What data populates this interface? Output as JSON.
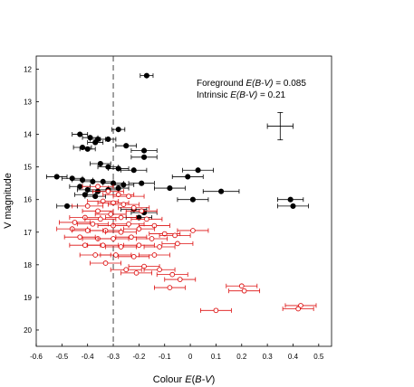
{
  "chart_data": {
    "type": "scatter",
    "title": "",
    "xlabel": "Colour E(B-V)",
    "ylabel": "V magnitude",
    "xlim": [
      -0.6,
      0.55
    ],
    "ylim": [
      11.6,
      20.5
    ],
    "y_inverted": true,
    "x_ticks": [
      "-0.6",
      "-0.5",
      "-0.4",
      "-0.3",
      "-0.2",
      "-0.1",
      "0",
      "0.1",
      "0.2",
      "0.3",
      "0.4",
      "0.5"
    ],
    "x_tick_values": [
      -0.6,
      -0.5,
      -0.4,
      -0.3,
      -0.2,
      -0.1,
      0,
      0.1,
      0.2,
      0.3,
      0.4,
      0.5
    ],
    "y_ticks": [
      "12",
      "13",
      "14",
      "15",
      "16",
      "17",
      "18",
      "19",
      "20"
    ],
    "y_tick_values": [
      12,
      13,
      14,
      15,
      16,
      17,
      18,
      19,
      20
    ],
    "grid": false,
    "annotations": {
      "foreground": {
        "prefix": "Foreground ",
        "label": "E(B-V)",
        "suffix": " = 0.085"
      },
      "intrinsic": {
        "prefix": "Intrinsic ",
        "label": "E(B-V)",
        "suffix": " = 0.21"
      }
    },
    "reference_line": {
      "x": -0.3,
      "style": "dashed"
    },
    "typical_error": {
      "x": 0.35,
      "y": 13.75,
      "xerr": 0.05,
      "yerr": 0.42
    },
    "colors": {
      "filled": "#000000",
      "open": "#dd1111"
    },
    "series": [
      {
        "marker": "filled",
        "color": "#000000",
        "points": [
          {
            "x": -0.17,
            "y": 12.2,
            "xerr": 0.025
          },
          {
            "x": -0.28,
            "y": 13.85,
            "xerr": 0.025
          },
          {
            "x": -0.43,
            "y": 14.0,
            "xerr": 0.03
          },
          {
            "x": -0.39,
            "y": 14.1,
            "xerr": 0.03
          },
          {
            "x": -0.36,
            "y": 14.15,
            "xerr": 0.03
          },
          {
            "x": -0.32,
            "y": 14.15,
            "xerr": 0.03
          },
          {
            "x": -0.37,
            "y": 14.25,
            "xerr": 0.03
          },
          {
            "x": -0.42,
            "y": 14.4,
            "xerr": 0.035
          },
          {
            "x": -0.25,
            "y": 14.35,
            "xerr": 0.04
          },
          {
            "x": -0.18,
            "y": 14.5,
            "xerr": 0.05
          },
          {
            "x": -0.4,
            "y": 14.45,
            "xerr": 0.03
          },
          {
            "x": -0.18,
            "y": 14.7,
            "xerr": 0.05
          },
          {
            "x": -0.35,
            "y": 14.9,
            "xerr": 0.04
          },
          {
            "x": -0.32,
            "y": 15.0,
            "xerr": 0.04
          },
          {
            "x": -0.28,
            "y": 15.05,
            "xerr": 0.04
          },
          {
            "x": -0.22,
            "y": 15.1,
            "xerr": 0.05
          },
          {
            "x": 0.03,
            "y": 15.1,
            "xerr": 0.06
          },
          {
            "x": -0.01,
            "y": 15.3,
            "xerr": 0.06
          },
          {
            "x": -0.52,
            "y": 15.3,
            "xerr": 0.04
          },
          {
            "x": -0.46,
            "y": 15.35,
            "xerr": 0.04
          },
          {
            "x": -0.42,
            "y": 15.4,
            "xerr": 0.04
          },
          {
            "x": -0.38,
            "y": 15.45,
            "xerr": 0.04
          },
          {
            "x": -0.34,
            "y": 15.45,
            "xerr": 0.04
          },
          {
            "x": -0.3,
            "y": 15.5,
            "xerr": 0.04
          },
          {
            "x": -0.26,
            "y": 15.55,
            "xerr": 0.04
          },
          {
            "x": -0.19,
            "y": 15.5,
            "xerr": 0.05
          },
          {
            "x": -0.08,
            "y": 15.65,
            "xerr": 0.06
          },
          {
            "x": -0.43,
            "y": 15.6,
            "xerr": 0.04
          },
          {
            "x": -0.4,
            "y": 15.7,
            "xerr": 0.04
          },
          {
            "x": -0.36,
            "y": 15.75,
            "xerr": 0.04
          },
          {
            "x": -0.32,
            "y": 15.7,
            "xerr": 0.04
          },
          {
            "x": -0.28,
            "y": 15.65,
            "xerr": 0.04
          },
          {
            "x": 0.12,
            "y": 15.75,
            "xerr": 0.07
          },
          {
            "x": -0.41,
            "y": 15.85,
            "xerr": 0.04
          },
          {
            "x": -0.37,
            "y": 15.9,
            "xerr": 0.04
          },
          {
            "x": 0.01,
            "y": 16.0,
            "xerr": 0.06
          },
          {
            "x": 0.39,
            "y": 16.0,
            "xerr": 0.05
          },
          {
            "x": 0.4,
            "y": 16.2,
            "xerr": 0.06
          },
          {
            "x": -0.48,
            "y": 16.2,
            "xerr": 0.04
          },
          {
            "x": -0.22,
            "y": 16.3,
            "xerr": 0.05
          },
          {
            "x": -0.18,
            "y": 16.4,
            "xerr": 0.05
          },
          {
            "x": -0.2,
            "y": 16.55,
            "xerr": 0.05
          }
        ]
      },
      {
        "marker": "open",
        "color": "#dd1111",
        "points": [
          {
            "x": -0.36,
            "y": 15.6,
            "xerr": 0.06
          },
          {
            "x": -0.32,
            "y": 15.75,
            "xerr": 0.06
          },
          {
            "x": -0.28,
            "y": 15.85,
            "xerr": 0.06
          },
          {
            "x": -0.24,
            "y": 15.9,
            "xerr": 0.06
          },
          {
            "x": -0.34,
            "y": 16.05,
            "xerr": 0.06
          },
          {
            "x": -0.3,
            "y": 16.1,
            "xerr": 0.06
          },
          {
            "x": -0.26,
            "y": 16.15,
            "xerr": 0.06
          },
          {
            "x": -0.4,
            "y": 16.2,
            "xerr": 0.06
          },
          {
            "x": -0.22,
            "y": 16.25,
            "xerr": 0.06
          },
          {
            "x": -0.36,
            "y": 16.35,
            "xerr": 0.06
          },
          {
            "x": -0.19,
            "y": 16.35,
            "xerr": 0.06
          },
          {
            "x": -0.31,
            "y": 16.45,
            "xerr": 0.06
          },
          {
            "x": -0.41,
            "y": 16.55,
            "xerr": 0.06
          },
          {
            "x": -0.35,
            "y": 16.6,
            "xerr": 0.06
          },
          {
            "x": -0.27,
            "y": 16.55,
            "xerr": 0.06
          },
          {
            "x": -0.17,
            "y": 16.6,
            "xerr": 0.06
          },
          {
            "x": -0.45,
            "y": 16.7,
            "xerr": 0.06
          },
          {
            "x": -0.38,
            "y": 16.75,
            "xerr": 0.06
          },
          {
            "x": -0.3,
            "y": 16.8,
            "xerr": 0.06
          },
          {
            "x": -0.24,
            "y": 16.75,
            "xerr": 0.06
          },
          {
            "x": -0.14,
            "y": 16.8,
            "xerr": 0.06
          },
          {
            "x": -0.46,
            "y": 16.9,
            "xerr": 0.06
          },
          {
            "x": -0.4,
            "y": 16.95,
            "xerr": 0.06
          },
          {
            "x": -0.33,
            "y": 16.95,
            "xerr": 0.06
          },
          {
            "x": -0.27,
            "y": 17.0,
            "xerr": 0.06
          },
          {
            "x": -0.2,
            "y": 16.9,
            "xerr": 0.06
          },
          {
            "x": -0.1,
            "y": 17.05,
            "xerr": 0.06
          },
          {
            "x": -0.43,
            "y": 17.15,
            "xerr": 0.06
          },
          {
            "x": -0.36,
            "y": 17.2,
            "xerr": 0.06
          },
          {
            "x": -0.3,
            "y": 17.2,
            "xerr": 0.06
          },
          {
            "x": -0.23,
            "y": 17.15,
            "xerr": 0.06
          },
          {
            "x": -0.15,
            "y": 17.2,
            "xerr": 0.06
          },
          {
            "x": -0.06,
            "y": 17.1,
            "xerr": 0.06
          },
          {
            "x": 0.01,
            "y": 16.95,
            "xerr": 0.06
          },
          {
            "x": -0.41,
            "y": 17.4,
            "xerr": 0.06
          },
          {
            "x": -0.34,
            "y": 17.4,
            "xerr": 0.06
          },
          {
            "x": -0.27,
            "y": 17.45,
            "xerr": 0.06
          },
          {
            "x": -0.2,
            "y": 17.4,
            "xerr": 0.06
          },
          {
            "x": -0.12,
            "y": 17.45,
            "xerr": 0.06
          },
          {
            "x": -0.05,
            "y": 17.35,
            "xerr": 0.06
          },
          {
            "x": -0.37,
            "y": 17.7,
            "xerr": 0.06
          },
          {
            "x": -0.29,
            "y": 17.7,
            "xerr": 0.06
          },
          {
            "x": -0.22,
            "y": 17.75,
            "xerr": 0.06
          },
          {
            "x": -0.14,
            "y": 17.7,
            "xerr": 0.06
          },
          {
            "x": -0.33,
            "y": 17.95,
            "xerr": 0.06
          },
          {
            "x": -0.18,
            "y": 18.05,
            "xerr": 0.06
          },
          {
            "x": -0.25,
            "y": 18.15,
            "xerr": 0.06
          },
          {
            "x": -0.12,
            "y": 18.15,
            "xerr": 0.06
          },
          {
            "x": -0.21,
            "y": 18.25,
            "xerr": 0.06
          },
          {
            "x": -0.07,
            "y": 18.3,
            "xerr": 0.06
          },
          {
            "x": -0.04,
            "y": 18.45,
            "xerr": 0.06
          },
          {
            "x": -0.08,
            "y": 18.7,
            "xerr": 0.06
          },
          {
            "x": 0.2,
            "y": 18.65,
            "xerr": 0.06
          },
          {
            "x": 0.21,
            "y": 18.8,
            "xerr": 0.06
          },
          {
            "x": 0.43,
            "y": 19.25,
            "xerr": 0.06
          },
          {
            "x": 0.42,
            "y": 19.35,
            "xerr": 0.06
          },
          {
            "x": 0.1,
            "y": 19.4,
            "xerr": 0.06
          }
        ]
      }
    ]
  }
}
